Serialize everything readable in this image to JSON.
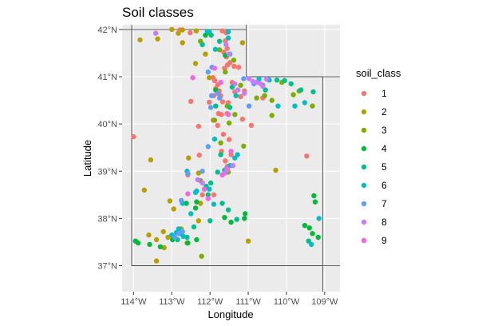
{
  "chart_data": {
    "type": "scatter",
    "title": "Soil classes",
    "xlabel": "Longitude",
    "ylabel": "Latitude",
    "xlim": [
      -114.3,
      -108.6
    ],
    "ylim": [
      36.45,
      42.1
    ],
    "x_ticks": [
      -114,
      -113,
      -112,
      -111,
      -110,
      -109
    ],
    "x_tick_labels": [
      "114°W",
      "113°W",
      "112°W",
      "111°W",
      "110°W",
      "109°W"
    ],
    "y_ticks": [
      37,
      38,
      39,
      40,
      41,
      42
    ],
    "y_tick_labels": [
      "37°N",
      "38°N",
      "39°N",
      "40°N",
      "41°N",
      "42°N"
    ],
    "legend": {
      "title": "soil_class",
      "position": "right",
      "entries": [
        "1",
        "2",
        "3",
        "4",
        "5",
        "6",
        "7",
        "8",
        "9"
      ]
    },
    "grid": true,
    "background": "gray",
    "series": [
      {
        "name": "1",
        "color": "#F8766D",
        "points": [
          [
            -114,
            39.73
          ],
          [
            -112.79,
            41.99
          ],
          [
            -112.52,
            41.93
          ],
          [
            -111.68,
            41.97
          ],
          [
            -111.58,
            41.93
          ],
          [
            -111.6,
            41.76
          ],
          [
            -111.55,
            41.6
          ],
          [
            -111.64,
            41.52
          ],
          [
            -111.57,
            41.42
          ],
          [
            -111.48,
            41.3
          ],
          [
            -111.54,
            41.25
          ],
          [
            -111.62,
            41.18
          ],
          [
            -111.37,
            41.22
          ],
          [
            -111.25,
            41.2
          ],
          [
            -111.92,
            40.98
          ],
          [
            -111.88,
            40.92
          ],
          [
            -111.8,
            40.83
          ],
          [
            -111.85,
            40.75
          ],
          [
            -111.76,
            40.7
          ],
          [
            -111.72,
            40.6
          ],
          [
            -111.9,
            40.6
          ],
          [
            -111.67,
            40.47
          ],
          [
            -111.52,
            40.45
          ],
          [
            -112.5,
            40.48
          ],
          [
            -111.78,
            40.22
          ],
          [
            -111.92,
            40.08
          ],
          [
            -111.7,
            40.2
          ],
          [
            -111.55,
            40.22
          ],
          [
            -111.15,
            40.1
          ],
          [
            -110.92,
            39.97
          ],
          [
            -112.3,
            39.95
          ],
          [
            -111.8,
            39.97
          ],
          [
            -111.65,
            39.78
          ],
          [
            -111.5,
            39.67
          ],
          [
            -111.7,
            39.42
          ],
          [
            -111.45,
            39.35
          ],
          [
            -112.28,
            39.34
          ],
          [
            -111.6,
            39.22
          ],
          [
            -111.55,
            39.1
          ],
          [
            -109.47,
            39.32
          ],
          [
            -112.58,
            38.92
          ],
          [
            -112.2,
            38.5
          ],
          [
            -111.9,
            38.5
          ],
          [
            -111.35,
            40.68
          ],
          [
            -111.2,
            40.58
          ],
          [
            -112.02,
            40.46
          ],
          [
            -111.42,
            40.88
          ],
          [
            -111.1,
            40.7
          ],
          [
            -110.62,
            40.55
          ]
        ]
      },
      {
        "name": "2",
        "color": "#B79F00",
        "points": [
          [
            -113.83,
            41.78
          ],
          [
            -113.37,
            41.8
          ],
          [
            -112.83,
            41.92
          ],
          [
            -112.72,
            41.99
          ],
          [
            -112.36,
            41.97
          ],
          [
            -113.0,
            42.0
          ],
          [
            -112.72,
            41.72
          ],
          [
            -112.38,
            41.28
          ],
          [
            -112.12,
            41.48
          ],
          [
            -112.02,
            40.98
          ],
          [
            -113.55,
            39.24
          ],
          [
            -113.72,
            38.6
          ],
          [
            -113.05,
            38.37
          ],
          [
            -112.95,
            38.2
          ],
          [
            -113.22,
            37.72
          ],
          [
            -113.6,
            37.65
          ],
          [
            -113.4,
            37.55
          ],
          [
            -113.1,
            37.6
          ],
          [
            -112.75,
            37.78
          ],
          [
            -112.3,
            37.95
          ],
          [
            -112.56,
            39.28
          ],
          [
            -112.3,
            38.96
          ],
          [
            -112.25,
            38.32
          ],
          [
            -113.4,
            37.1
          ],
          [
            -113.2,
            37.38
          ],
          [
            -112.6,
            37.48
          ],
          [
            -111.0,
            37.52
          ],
          [
            -110.28,
            39.02
          ],
          [
            -111.15,
            41.72
          ]
        ]
      },
      {
        "name": "3",
        "color": "#00BA38",
        "points": [
          [
            -112.05,
            41.93
          ],
          [
            -112.25,
            41.75
          ],
          [
            -111.75,
            41.57
          ],
          [
            -111.38,
            41.35
          ],
          [
            -111.6,
            41.1
          ],
          [
            -111.2,
            40.82
          ],
          [
            -110.78,
            40.55
          ],
          [
            -110.57,
            40.6
          ],
          [
            -110.38,
            40.5
          ],
          [
            -110.62,
            40.82
          ],
          [
            -110.12,
            40.88
          ],
          [
            -109.82,
            40.62
          ],
          [
            -109.67,
            40.7
          ],
          [
            -109.32,
            40.38
          ],
          [
            -110.38,
            40.18
          ],
          [
            -111.35,
            40.2
          ],
          [
            -111.55,
            40.38
          ],
          [
            -111.88,
            40.08
          ],
          [
            -111.12,
            39.53
          ],
          [
            -112.25,
            38.8
          ],
          [
            -111.72,
            39.6
          ],
          [
            -112.22,
            37.2
          ],
          [
            -111.52,
            38.98
          ],
          [
            -111.5,
            40.02
          ]
        ],
        "color_actual": "#7CAE00"
      },
      {
        "name": "4",
        "color": "#00BA38",
        "points": [
          [
            -113.95,
            37.52
          ],
          [
            -113.88,
            37.48
          ],
          [
            -113.58,
            37.45
          ],
          [
            -113.3,
            37.4
          ],
          [
            -112.98,
            37.55
          ],
          [
            -112.58,
            37.48
          ],
          [
            -112.35,
            37.55
          ],
          [
            -112.38,
            38.22
          ],
          [
            -112.62,
            38.32
          ],
          [
            -112.35,
            38.35
          ],
          [
            -111.62,
            38.02
          ],
          [
            -111.45,
            37.92
          ],
          [
            -111.1,
            38.0
          ],
          [
            -111.08,
            38.1
          ],
          [
            -109.32,
            37.68
          ],
          [
            -109.4,
            37.8
          ],
          [
            -109.52,
            37.85
          ],
          [
            -109.28,
            38.48
          ],
          [
            -109.25,
            38.35
          ],
          [
            -111.85,
            40.72
          ],
          [
            -111.6,
            41.45
          ],
          [
            -112.12,
            41.88
          ],
          [
            -109.17,
            37.6
          ],
          [
            -112.75,
            37.68
          ]
        ]
      },
      {
        "name": "5",
        "color": "#00BFC4",
        "points": [
          [
            -112.02,
            41.95
          ],
          [
            -111.97,
            41.88
          ],
          [
            -112.2,
            41.68
          ],
          [
            -111.75,
            41.75
          ],
          [
            -110.5,
            40.95
          ],
          [
            -110.25,
            40.93
          ],
          [
            -110.05,
            40.92
          ],
          [
            -109.88,
            40.85
          ],
          [
            -109.62,
            40.72
          ],
          [
            -109.3,
            40.68
          ],
          [
            -110.55,
            40.72
          ],
          [
            -111.42,
            40.78
          ],
          [
            -111.85,
            40.38
          ],
          [
            -111.48,
            40.35
          ],
          [
            -111.72,
            39.35
          ],
          [
            -111.62,
            39.02
          ],
          [
            -111.8,
            38.98
          ],
          [
            -111.98,
            38.75
          ],
          [
            -111.52,
            38.18
          ],
          [
            -111.3,
            37.98
          ],
          [
            -111.68,
            38.32
          ],
          [
            -112.05,
            38.5
          ],
          [
            -112.85,
            37.55
          ],
          [
            -112.42,
            37.82
          ],
          [
            -112.0,
            37.95
          ],
          [
            -109.42,
            37.52
          ],
          [
            -112.6,
            37.6
          ],
          [
            -112.1,
            38.68
          ]
        ],
        "color_actual": "#00C08B"
      },
      {
        "name": "6",
        "color": "#00BFC4",
        "points": [
          [
            -112.07,
            41.96
          ],
          [
            -111.52,
            41.95
          ],
          [
            -111.52,
            41.82
          ],
          [
            -111.86,
            41.58
          ],
          [
            -111.48,
            41.48
          ],
          [
            -110.72,
            40.95
          ],
          [
            -110.45,
            40.93
          ],
          [
            -110.22,
            40.38
          ],
          [
            -109.52,
            40.45
          ],
          [
            -109.78,
            40.38
          ],
          [
            -111.32,
            40.6
          ],
          [
            -111.88,
            39.68
          ],
          [
            -111.28,
            39.35
          ],
          [
            -111.48,
            39.12
          ],
          [
            -111.35,
            39.28
          ],
          [
            -112.02,
            38.62
          ],
          [
            -112.35,
            38.58
          ],
          [
            -111.9,
            38.3
          ],
          [
            -112.72,
            38.32
          ],
          [
            -112.82,
            37.78
          ],
          [
            -112.7,
            37.62
          ],
          [
            -112.88,
            37.7
          ],
          [
            -109.15,
            38.0
          ],
          [
            -109.35,
            37.45
          ],
          [
            -113.0,
            37.65
          ],
          [
            -112.6,
            39.0
          ],
          [
            -112.5,
            38.1
          ],
          [
            -112.38,
            38.55
          ]
        ]
      },
      {
        "name": "7",
        "color": "#619CFF",
        "points": [
          [
            -111.95,
            41.2
          ],
          [
            -112.05,
            41.1
          ],
          [
            -111.96,
            40.6
          ],
          [
            -111.75,
            40.55
          ],
          [
            -111.98,
            40.35
          ],
          [
            -111.12,
            40.96
          ],
          [
            -110.85,
            40.85
          ],
          [
            -110.98,
            40.38
          ],
          [
            -111.8,
            40.65
          ],
          [
            -112.58,
            38.95
          ],
          [
            -112.2,
            39.0
          ],
          [
            -111.57,
            39.05
          ],
          [
            -112.82,
            37.68
          ],
          [
            -112.92,
            37.6
          ],
          [
            -112.72,
            37.72
          ],
          [
            -112.05,
            39.52
          ],
          [
            -112.75,
            38.38
          ]
        ]
      },
      {
        "name": "8",
        "color": "#F564E3",
        "points": [
          [
            -113.42,
            41.92
          ],
          [
            -111.58,
            41.68
          ],
          [
            -111.5,
            41.48
          ],
          [
            -110.98,
            40.96
          ],
          [
            -110.88,
            40.9
          ],
          [
            -110.78,
            40.88
          ],
          [
            -110.52,
            40.95
          ],
          [
            -110.68,
            40.85
          ],
          [
            -110.62,
            40.8
          ],
          [
            -111.35,
            40.85
          ],
          [
            -111.27,
            40.72
          ],
          [
            -111.1,
            40.65
          ],
          [
            -111.4,
            39.12
          ],
          [
            -111.55,
            39.02
          ],
          [
            -111.62,
            38.96
          ],
          [
            -112.32,
            38.82
          ],
          [
            -112.2,
            38.75
          ]
        ],
        "color_actual": "#C77CFF"
      },
      {
        "name": "9",
        "color": "#F564E3",
        "points": [
          [
            -112.45,
            40.98
          ],
          [
            -111.88,
            41.18
          ],
          [
            -111.72,
            40.88
          ],
          [
            -111.52,
            40.2
          ],
          [
            -111.45,
            39.42
          ],
          [
            -111.55,
            39.05
          ],
          [
            -112.58,
            38.52
          ],
          [
            -112.05,
            38.42
          ],
          [
            -112.15,
            38.62
          ],
          [
            -111.68,
            38.92
          ]
        ]
      }
    ]
  },
  "map": {
    "regions": [
      "Utah"
    ]
  }
}
